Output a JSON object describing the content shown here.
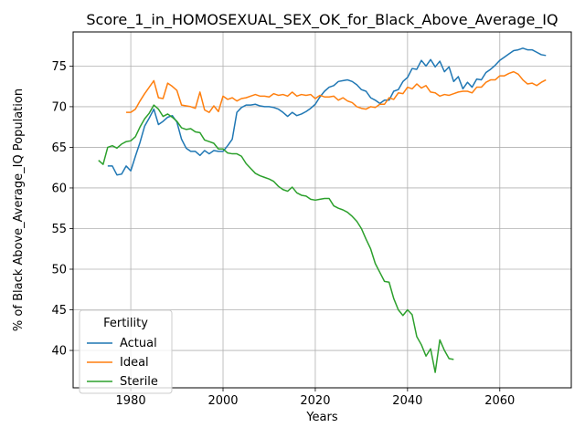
{
  "chart_data": {
    "type": "line",
    "title": "Score_1_in_HOMOSEXUAL_SEX_OK_for_Black_Above_Average_IQ",
    "xlabel": "Years",
    "ylabel": "% of Black Above_Average_IQ Population",
    "xlim": [
      1967.5,
      2075.5
    ],
    "ylim": [
      35.4,
      79.2
    ],
    "xticks": [
      1980,
      2000,
      2020,
      2040,
      2060
    ],
    "yticks": [
      40,
      45,
      50,
      55,
      60,
      65,
      70,
      75
    ],
    "grid": true,
    "legend": {
      "title": "Fertility",
      "location": "lower left"
    },
    "series": [
      {
        "name": "Actual",
        "color": "#1f77b4",
        "x": [
          1975,
          1976,
          1977,
          1978,
          1979,
          1980,
          1981,
          1982,
          1983,
          1984,
          1985,
          1986,
          1987,
          1988,
          1989,
          1990,
          1991,
          1992,
          1993,
          1994,
          1995,
          1996,
          1997,
          1998,
          1999,
          2000,
          2001,
          2002,
          2003,
          2004,
          2005,
          2006,
          2007,
          2008,
          2009,
          2010,
          2011,
          2012,
          2013,
          2014,
          2015,
          2016,
          2017,
          2018,
          2019,
          2020,
          2021,
          2022,
          2023,
          2024,
          2025,
          2026,
          2027,
          2028,
          2029,
          2030,
          2031,
          2032,
          2033,
          2034,
          2035,
          2036,
          2037,
          2038,
          2039,
          2040,
          2041,
          2042,
          2043,
          2044,
          2045,
          2046,
          2047,
          2048,
          2049,
          2050,
          2051,
          2052,
          2053,
          2054,
          2055,
          2056,
          2057,
          2058,
          2059,
          2060,
          2061,
          2062,
          2063,
          2064,
          2065,
          2066,
          2067,
          2068,
          2069,
          2070
        ],
        "values": [
          62.7,
          62.7,
          61.6,
          61.7,
          62.7,
          62.1,
          63.9,
          65.6,
          67.6,
          68.6,
          69.7,
          67.8,
          68.2,
          68.7,
          68.9,
          68.1,
          66.0,
          64.9,
          64.5,
          64.5,
          64.0,
          64.6,
          64.2,
          64.6,
          64.5,
          64.5,
          65.2,
          66.0,
          69.3,
          69.9,
          70.2,
          70.2,
          70.3,
          70.1,
          70.0,
          70.0,
          69.9,
          69.7,
          69.3,
          68.8,
          69.3,
          68.9,
          69.1,
          69.4,
          69.8,
          70.3,
          71.2,
          71.9,
          72.4,
          72.6,
          73.1,
          73.2,
          73.3,
          73.1,
          72.7,
          72.1,
          71.9,
          71.1,
          70.8,
          70.4,
          70.8,
          70.8,
          71.9,
          72.1,
          73.1,
          73.6,
          74.7,
          74.6,
          75.7,
          75.0,
          75.8,
          74.9,
          75.6,
          74.3,
          74.9,
          73.1,
          73.7,
          72.2,
          73.0,
          72.4,
          73.4,
          73.3,
          74.2,
          74.6,
          75.1,
          75.7,
          76.1,
          76.5,
          76.9,
          77.0,
          77.2,
          77.0,
          77.0,
          76.7,
          76.4,
          76.3
        ]
      },
      {
        "name": "Ideal",
        "color": "#ff7f0e",
        "x": [
          1979,
          1980,
          1981,
          1982,
          1983,
          1984,
          1985,
          1986,
          1987,
          1988,
          1989,
          1990,
          1991,
          1992,
          1993,
          1994,
          1995,
          1996,
          1997,
          1998,
          1999,
          2000,
          2001,
          2002,
          2003,
          2004,
          2005,
          2006,
          2007,
          2008,
          2009,
          2010,
          2011,
          2012,
          2013,
          2014,
          2015,
          2016,
          2017,
          2018,
          2019,
          2020,
          2021,
          2022,
          2023,
          2024,
          2025,
          2026,
          2027,
          2028,
          2029,
          2030,
          2031,
          2032,
          2033,
          2034,
          2035,
          2036,
          2037,
          2038,
          2039,
          2040,
          2041,
          2042,
          2043,
          2044,
          2045,
          2046,
          2047,
          2048,
          2049,
          2050,
          2051,
          2052,
          2053,
          2054,
          2055,
          2056,
          2057,
          2058,
          2059,
          2060,
          2061,
          2062,
          2063,
          2064,
          2065,
          2066,
          2067,
          2068,
          2069,
          2070
        ],
        "values": [
          69.3,
          69.3,
          69.7,
          70.7,
          71.6,
          72.4,
          73.2,
          71.1,
          71.0,
          72.9,
          72.5,
          72.0,
          70.2,
          70.1,
          70.0,
          69.8,
          71.8,
          69.6,
          69.3,
          70.1,
          69.4,
          71.3,
          70.9,
          71.1,
          70.7,
          71.0,
          71.1,
          71.3,
          71.5,
          71.3,
          71.3,
          71.2,
          71.6,
          71.4,
          71.5,
          71.3,
          71.8,
          71.3,
          71.5,
          71.4,
          71.5,
          71.0,
          71.4,
          71.2,
          71.2,
          71.3,
          70.8,
          71.1,
          70.7,
          70.5,
          70.0,
          69.8,
          69.7,
          70.0,
          69.9,
          70.3,
          70.3,
          71.1,
          70.9,
          71.7,
          71.6,
          72.4,
          72.2,
          72.8,
          72.3,
          72.6,
          71.8,
          71.7,
          71.3,
          71.5,
          71.4,
          71.6,
          71.8,
          71.9,
          71.9,
          71.7,
          72.4,
          72.4,
          73.0,
          73.3,
          73.3,
          73.8,
          73.8,
          74.1,
          74.3,
          74.0,
          73.3,
          72.8,
          72.9,
          72.6,
          73.0,
          73.3
        ]
      },
      {
        "name": "Sterile",
        "color": "#2ca02c",
        "x": [
          1973,
          1974,
          1975,
          1976,
          1977,
          1978,
          1979,
          1980,
          1981,
          1982,
          1983,
          1984,
          1985,
          1986,
          1987,
          1988,
          1989,
          1990,
          1991,
          1992,
          1993,
          1994,
          1995,
          1996,
          1997,
          1998,
          1999,
          2000,
          2001,
          2002,
          2003,
          2004,
          2005,
          2006,
          2007,
          2008,
          2009,
          2010,
          2011,
          2012,
          2013,
          2014,
          2015,
          2016,
          2017,
          2018,
          2019,
          2020,
          2021,
          2022,
          2023,
          2024,
          2025,
          2026,
          2027,
          2028,
          2029,
          2030,
          2031,
          2032,
          2033,
          2034,
          2035,
          2036,
          2037,
          2038,
          2039,
          2040,
          2041,
          2042,
          2043,
          2044,
          2045,
          2046,
          2047,
          2048,
          2049,
          2050
        ],
        "values": [
          63.4,
          62.9,
          65.0,
          65.2,
          64.9,
          65.4,
          65.7,
          65.8,
          66.3,
          67.5,
          68.5,
          69.2,
          70.2,
          69.7,
          68.8,
          69.1,
          68.7,
          68.2,
          67.4,
          67.2,
          67.3,
          66.9,
          66.8,
          65.9,
          65.7,
          65.5,
          64.8,
          64.8,
          64.3,
          64.2,
          64.2,
          63.9,
          63.0,
          62.4,
          61.8,
          61.5,
          61.3,
          61.1,
          60.8,
          60.2,
          59.8,
          59.6,
          60.1,
          59.4,
          59.1,
          59.0,
          58.6,
          58.5,
          58.6,
          58.7,
          58.7,
          57.8,
          57.5,
          57.3,
          57.0,
          56.5,
          55.9,
          55.0,
          53.7,
          52.5,
          50.7,
          49.6,
          48.5,
          48.4,
          46.4,
          45.0,
          44.3,
          45.0,
          44.4,
          41.7,
          40.7,
          39.3,
          40.2,
          37.3,
          41.3,
          40.0,
          39.0,
          38.9
        ]
      }
    ]
  }
}
